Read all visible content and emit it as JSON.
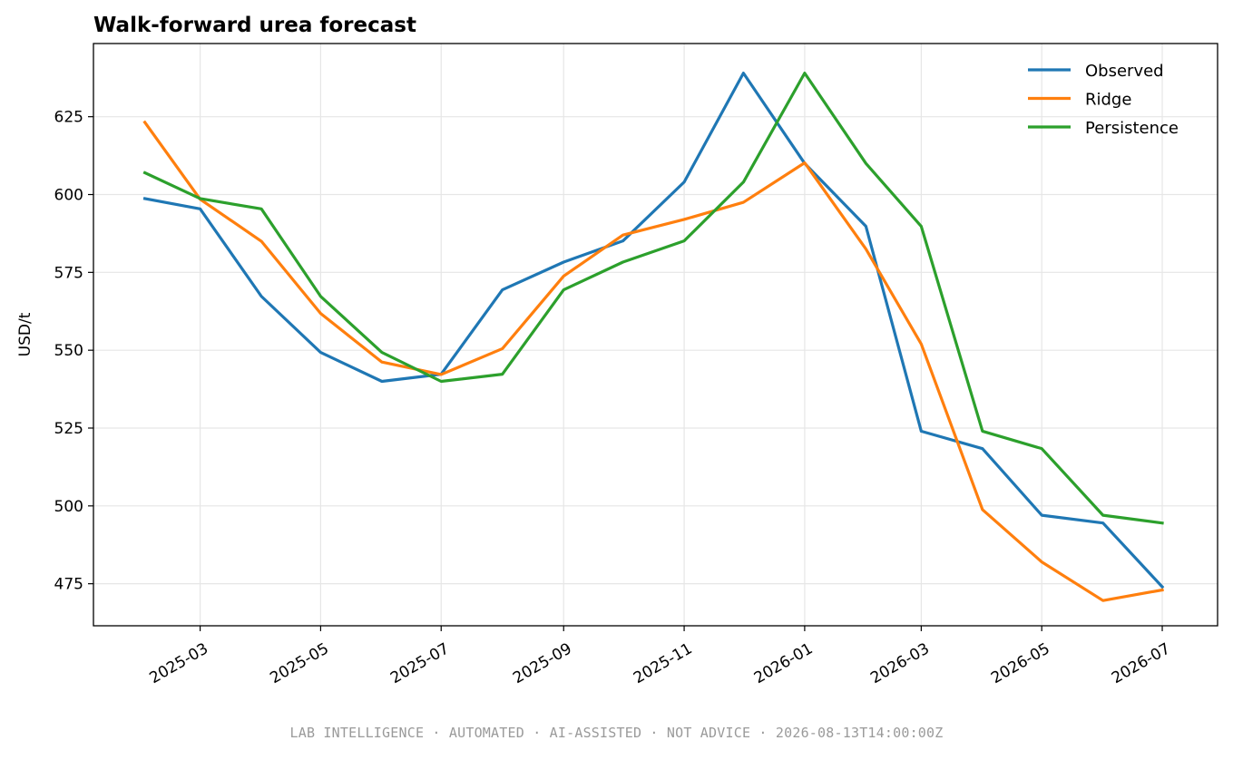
{
  "footer": "LAB INTELLIGENCE · AUTOMATED · AI-ASSISTED · NOT ADVICE · 2026-08-13T14:00:00Z",
  "chart_data": {
    "type": "line",
    "title": "Walk-forward urea forecast",
    "xlabel": "",
    "ylabel": "USD/t",
    "x": [
      "2025-02-01",
      "2025-03-01",
      "2025-04-01",
      "2025-05-01",
      "2025-06-01",
      "2025-07-01",
      "2025-08-01",
      "2025-09-01",
      "2025-10-01",
      "2025-11-01",
      "2025-12-01",
      "2026-01-01",
      "2026-02-01",
      "2026-03-01",
      "2026-04-01",
      "2026-05-01",
      "2026-06-01",
      "2026-07-01"
    ],
    "xticks": [
      "2025-03",
      "2025-05",
      "2025-07",
      "2025-09",
      "2025-11",
      "2026-01",
      "2026-03",
      "2026-05",
      "2026-07"
    ],
    "xlim": [
      "2025-01-06",
      "2026-07-29"
    ],
    "ylim": [
      461.5,
      648.5
    ],
    "yticks": [
      475,
      500,
      525,
      550,
      575,
      600,
      625
    ],
    "grid": true,
    "legend_position": "top-right",
    "series": [
      {
        "name": "Observed",
        "color": "#1f77b4",
        "values": [
          598.7,
          595.4,
          567.3,
          549.3,
          540.0,
          542.3,
          569.4,
          578.3,
          585.1,
          604.0,
          639.0,
          610.0,
          589.8,
          524.0,
          518.4,
          497.0,
          494.5,
          474.0
        ]
      },
      {
        "name": "Ridge",
        "color": "#ff7f0e",
        "values": [
          623.2,
          598.5,
          585.0,
          561.8,
          546.2,
          542.2,
          550.5,
          573.8,
          587.0,
          592.0,
          597.5,
          610.2,
          582.5,
          552.0,
          498.8,
          482.0,
          469.6,
          473.0
        ]
      },
      {
        "name": "Persistence",
        "color": "#2ca02c",
        "values": [
          607.0,
          598.7,
          595.4,
          567.3,
          549.3,
          540.0,
          542.3,
          569.4,
          578.3,
          585.1,
          604.0,
          639.0,
          610.0,
          589.8,
          524.0,
          518.4,
          497.0,
          494.5
        ]
      }
    ]
  }
}
